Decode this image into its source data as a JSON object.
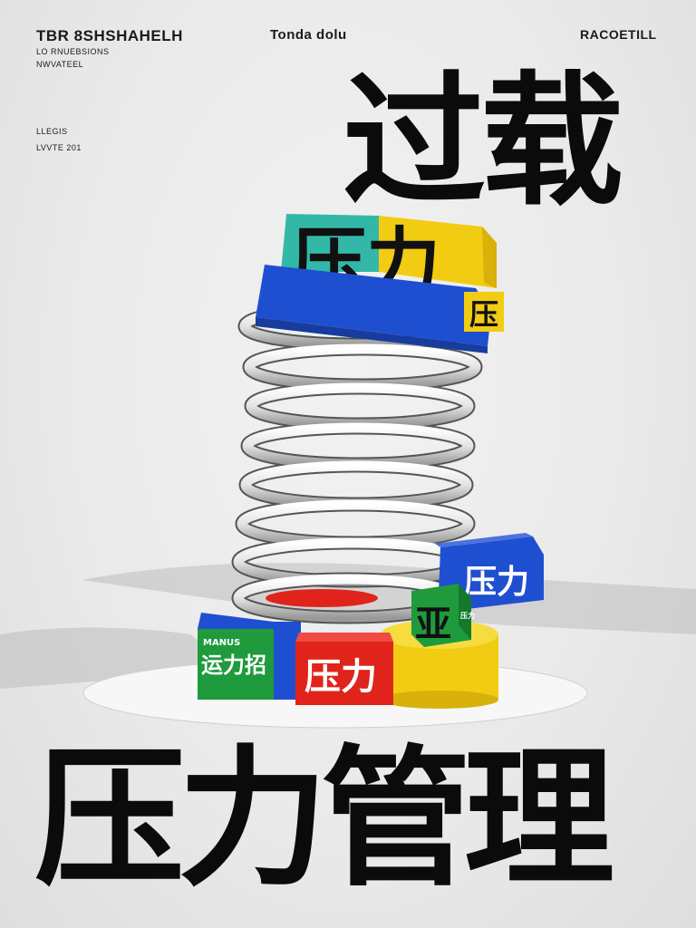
{
  "header": {
    "title": "TBR 8SHSHAHELH",
    "line1": "LO RNUEBSIONS",
    "line2": "NWVATEEL",
    "line3": "LLEGIS",
    "line4": "LVVTE 201",
    "center": "Tonda dolu",
    "right": "RACOETILL"
  },
  "headline_top": "过载",
  "headline_bottom": "压力管理",
  "blocks": {
    "top_block": "压力",
    "top_side": "压",
    "right_blue": "压力",
    "green_cube": "亚",
    "green_cube_side": "压力",
    "left_green": "运力招",
    "left_green_small": "MANUS",
    "red_block": "压力"
  },
  "colors": {
    "blue": "#1f4fd1",
    "yellow": "#f2cc12",
    "green": "#1f9a3c",
    "red": "#e0231b",
    "teal": "#33b8a8"
  }
}
